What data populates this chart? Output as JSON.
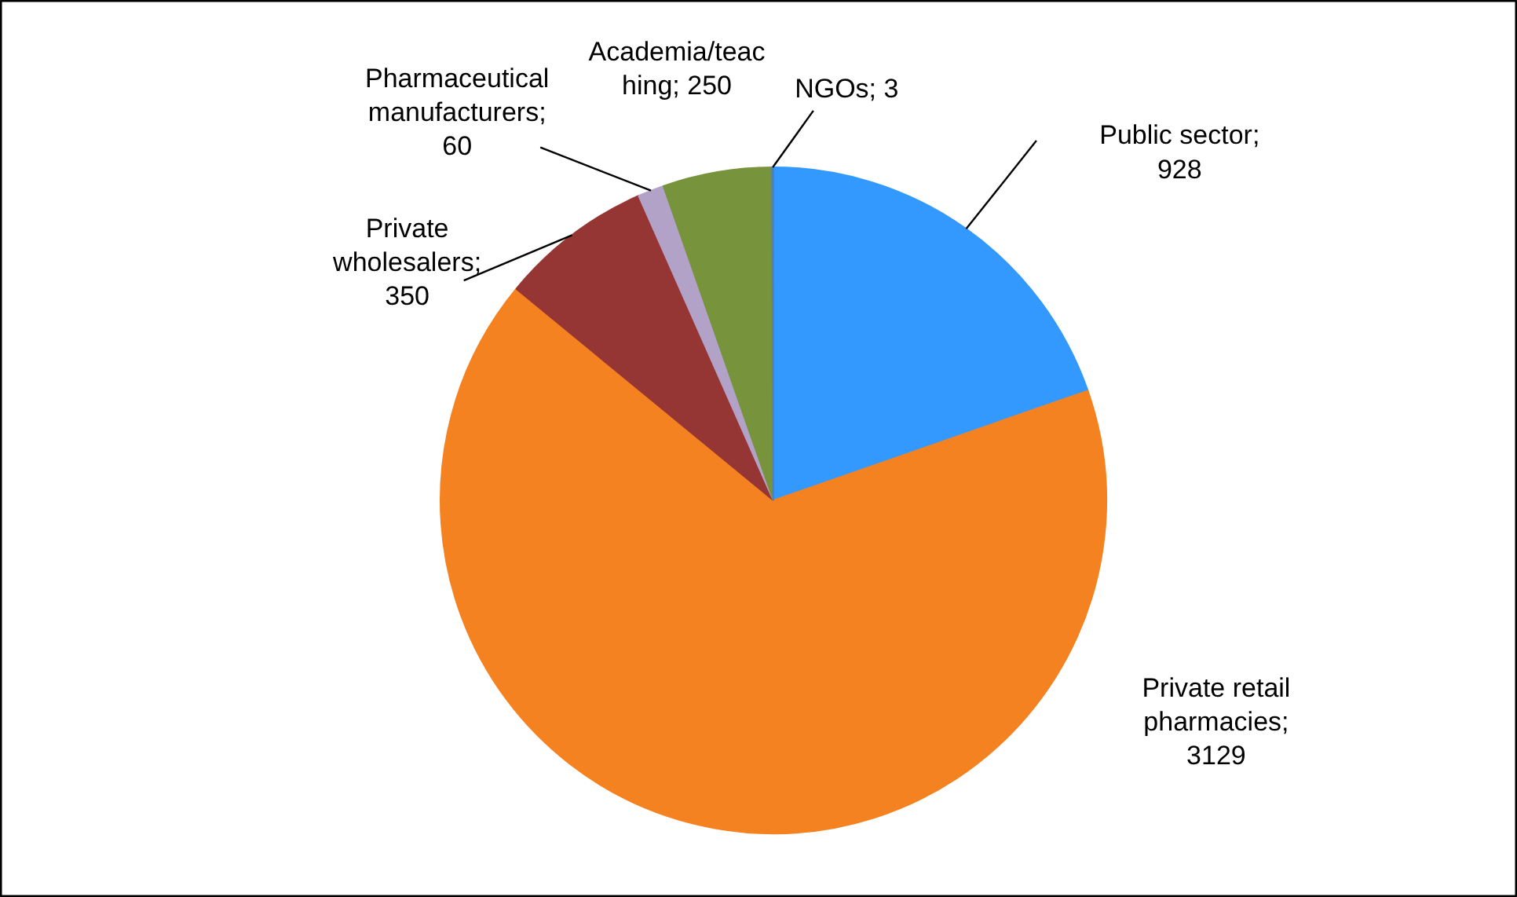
{
  "chart_data": {
    "type": "pie",
    "categories": [
      "Public sector",
      "Private retail pharmacies",
      "Private wholesalers",
      "Pharmaceutical manufacturers",
      "Academia/teaching",
      "NGOs"
    ],
    "values": [
      928,
      3129,
      350,
      60,
      250,
      3
    ],
    "colors": [
      "#3399ff",
      "#f58220",
      "#963634",
      "#b3a2c7",
      "#77933c",
      "#4f81bd"
    ],
    "value_labels": [
      "; 928",
      "; 3129",
      "; 350",
      "; 60",
      "; 250",
      "; 3"
    ]
  }
}
